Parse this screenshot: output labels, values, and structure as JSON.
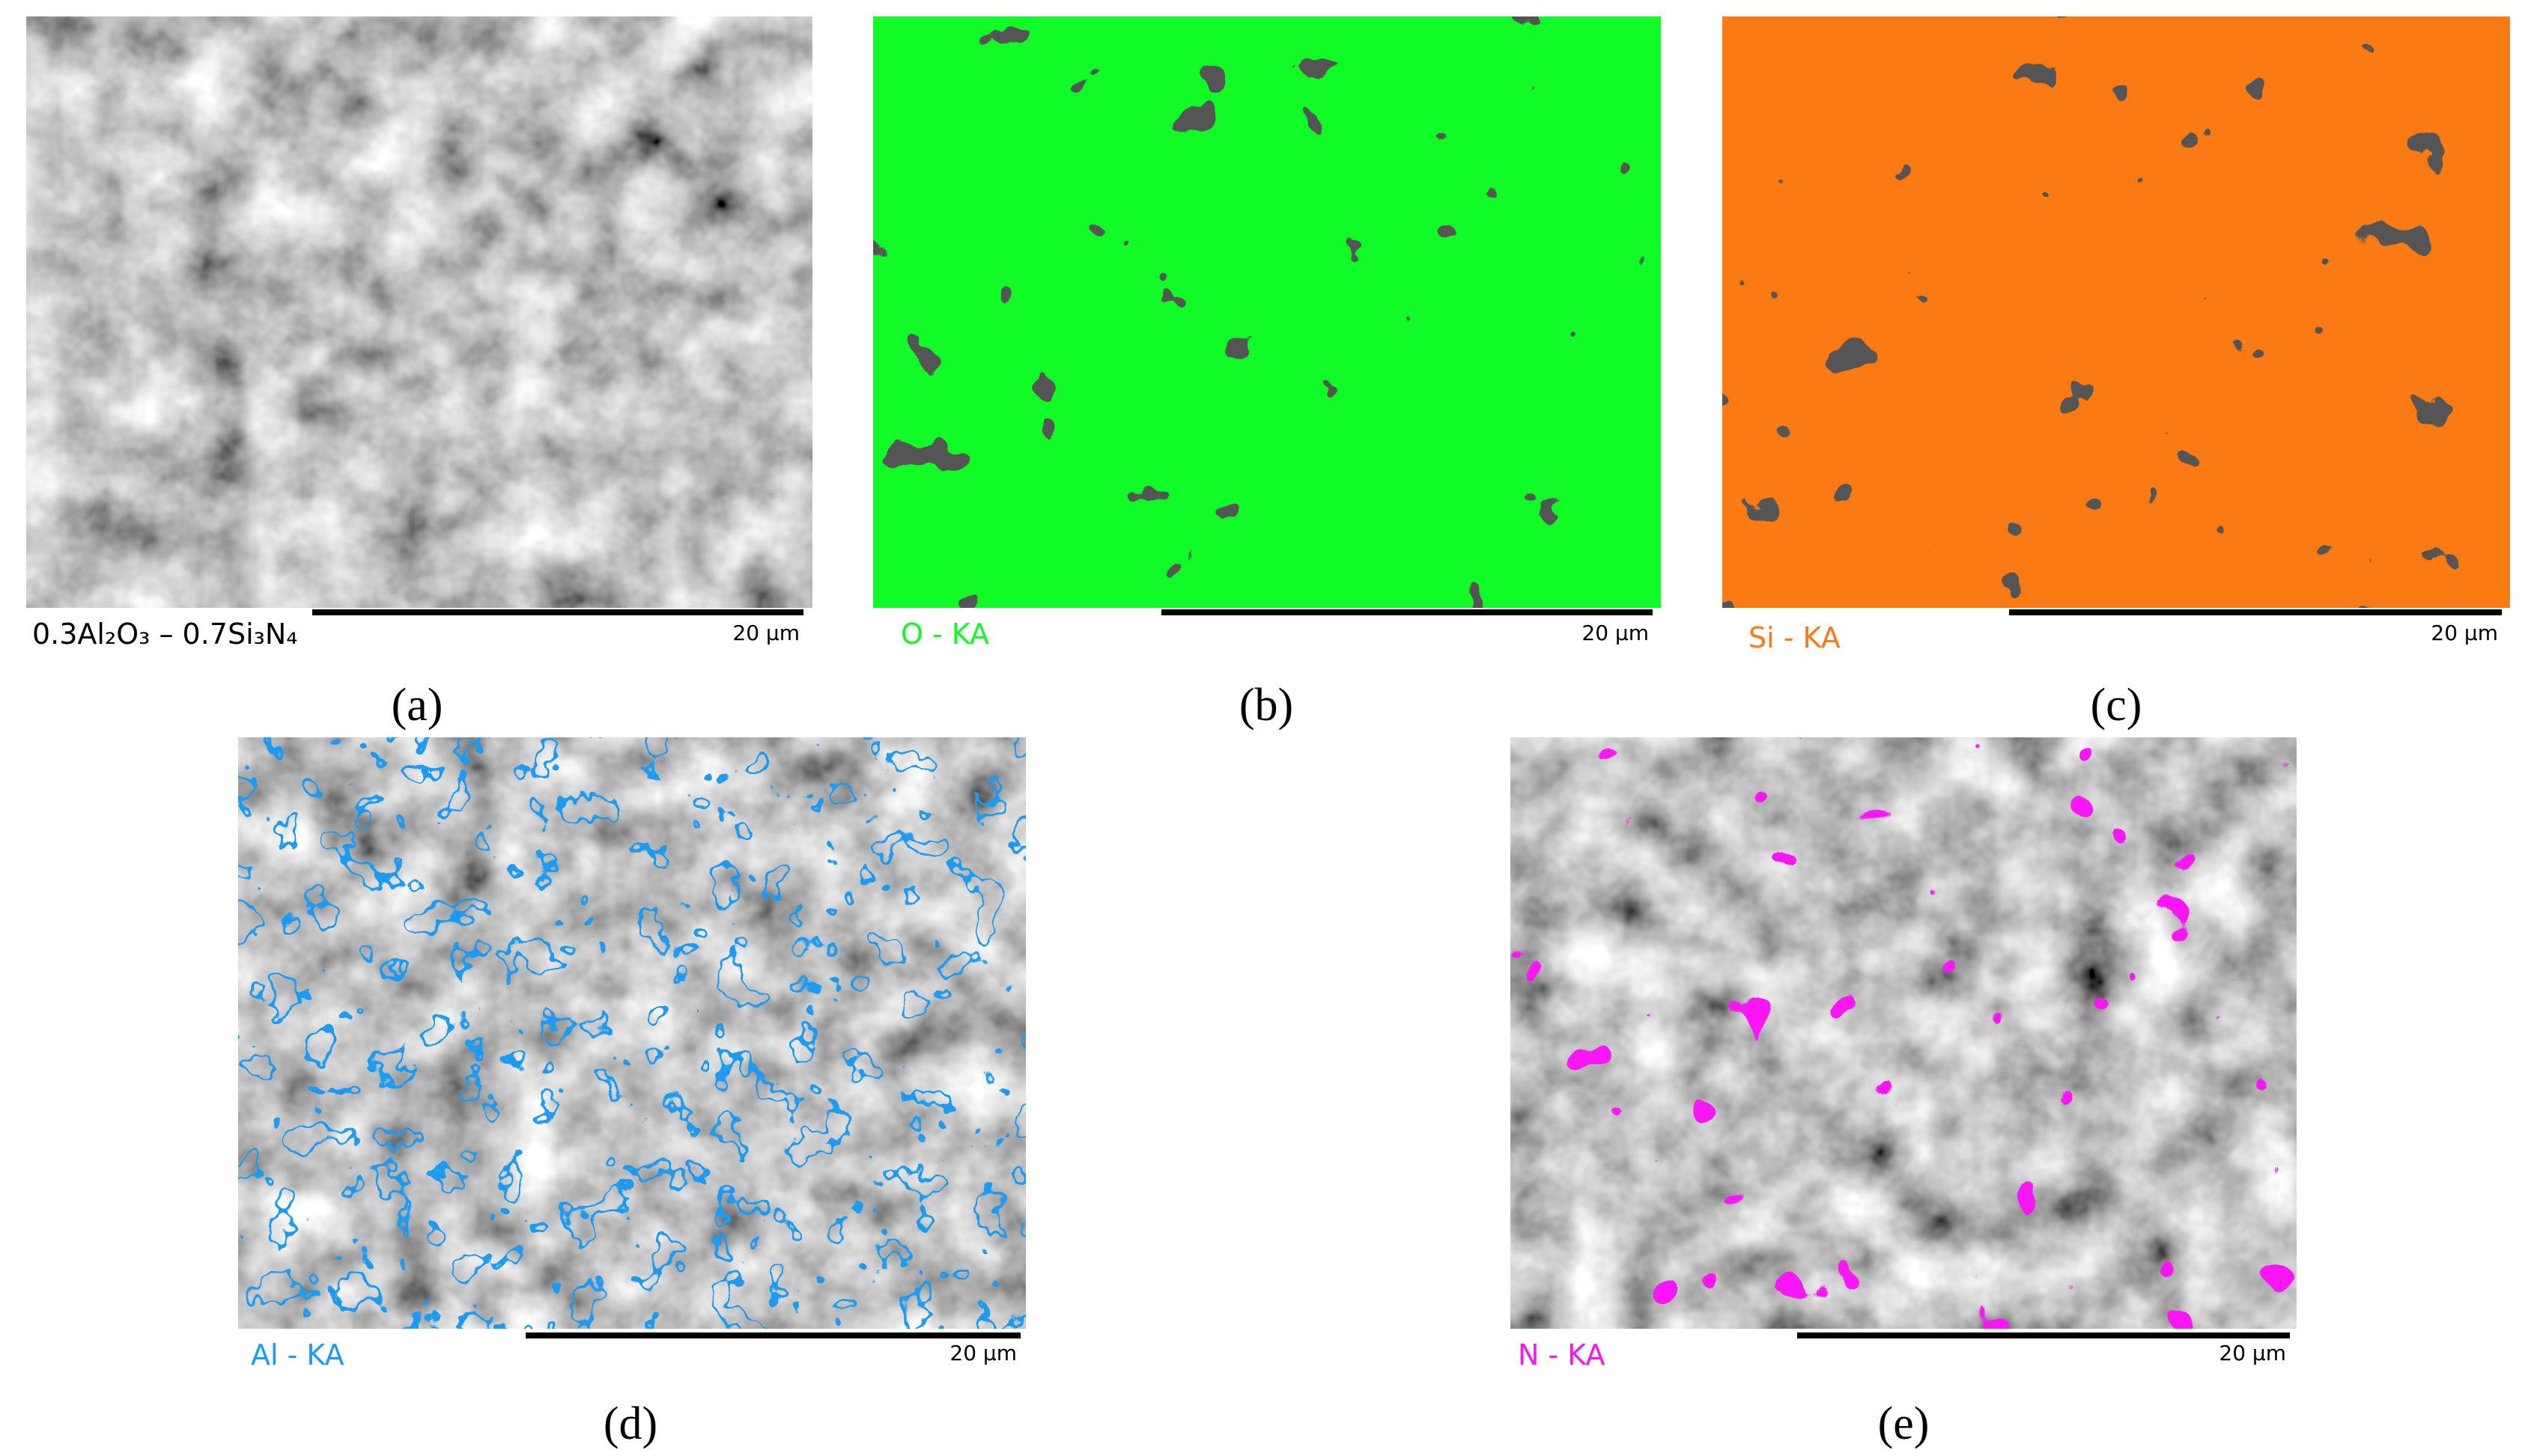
{
  "panels": [
    {
      "label": "(a)",
      "caption": "0.3Al₂O₃ – 0.7Si₃N₄",
      "scale": "20 µm"
    },
    {
      "label": "(b)",
      "caption": "O - KA",
      "scale": "20 µm"
    },
    {
      "label": "(c)",
      "caption": "Si - KA",
      "scale": "20 µm"
    },
    {
      "label": "(d)",
      "caption": "Al - KA",
      "scale": "20 µm"
    },
    {
      "label": "(e)",
      "caption": "N - KA",
      "scale": "20 µm"
    }
  ]
}
